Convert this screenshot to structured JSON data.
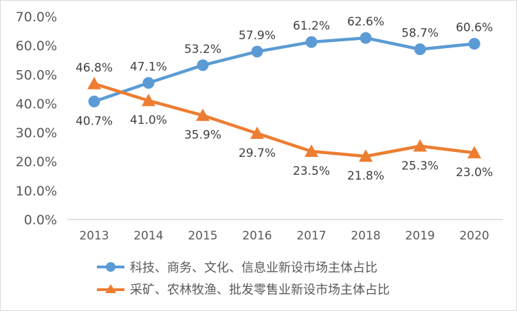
{
  "chart_data": {
    "type": "line",
    "categories": [
      "2013",
      "2014",
      "2015",
      "2016",
      "2017",
      "2018",
      "2019",
      "2020"
    ],
    "series": [
      {
        "name": "科技、商务、文化、信息业新设市场主体占比",
        "color": "#5b9bd5",
        "marker": "circle",
        "values": [
          40.7,
          47.1,
          53.2,
          57.9,
          61.2,
          62.6,
          58.7,
          60.6
        ],
        "labels": [
          "40.7%",
          "47.1%",
          "53.2%",
          "57.9%",
          "61.2%",
          "62.6%",
          "58.7%",
          "60.6%"
        ]
      },
      {
        "name": "采矿、农林牧渔、批发零售业新设市场主体占比",
        "color": "#ed7d31",
        "marker": "triangle",
        "values": [
          46.8,
          41.0,
          35.9,
          29.7,
          23.5,
          21.8,
          25.3,
          23.0
        ],
        "labels": [
          "46.8%",
          "41.0%",
          "35.9%",
          "29.7%",
          "23.5%",
          "21.8%",
          "25.3%",
          "23.0%"
        ]
      }
    ],
    "yticks": [
      "0.0%",
      "10.0%",
      "20.0%",
      "30.0%",
      "40.0%",
      "50.0%",
      "60.0%",
      "70.0%"
    ],
    "ylim": [
      0,
      70
    ],
    "grid": false,
    "legend": "bottom"
  }
}
